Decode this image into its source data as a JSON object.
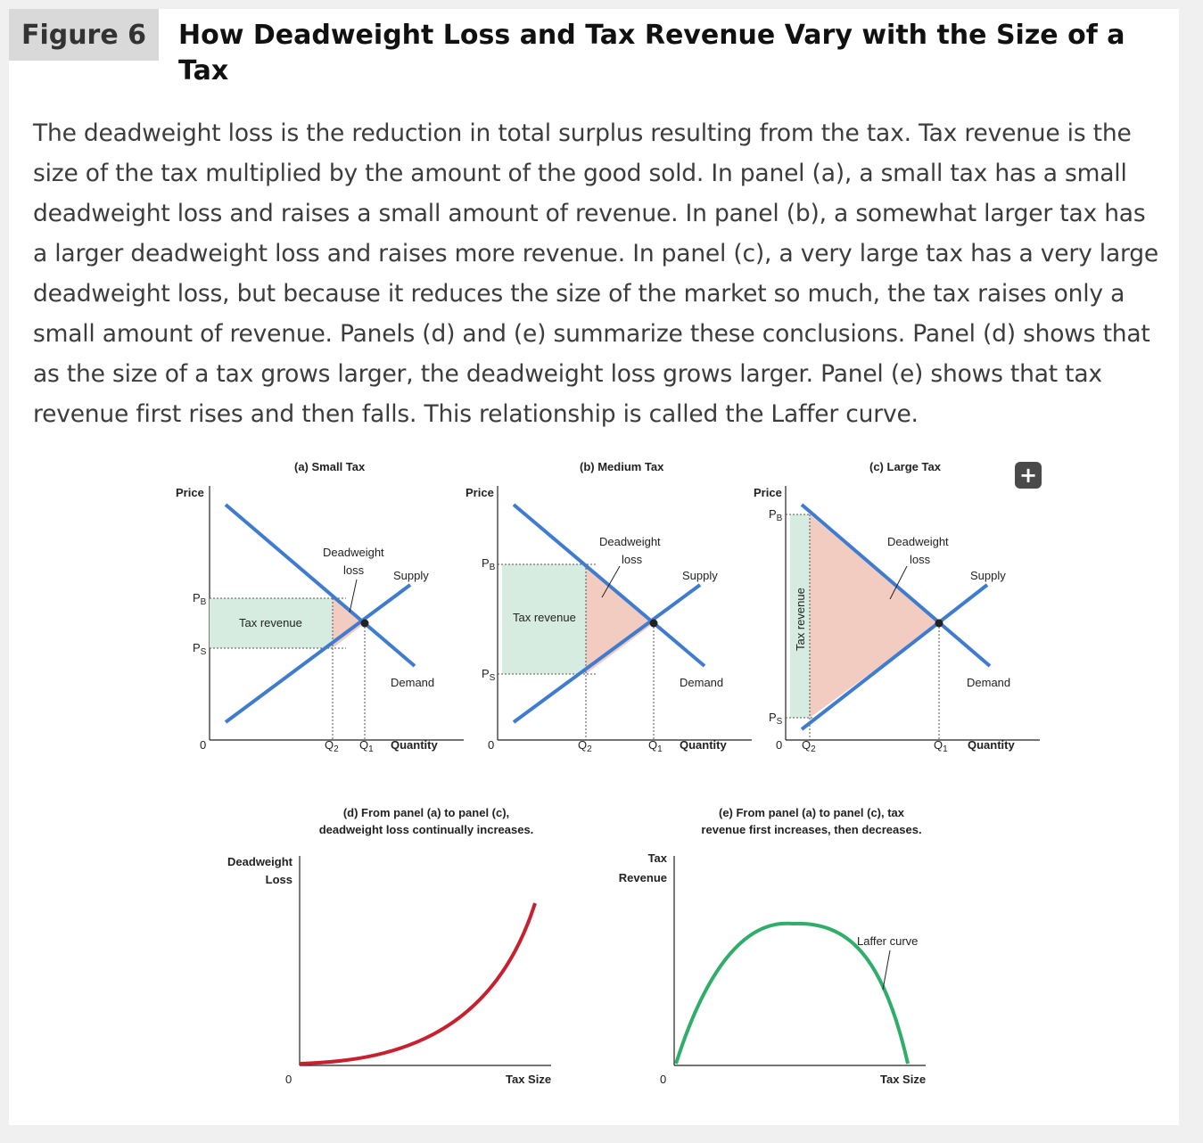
{
  "figure": {
    "label": "Figure 6",
    "title": "How Deadweight Loss and Tax Revenue Vary with the Size of a Tax",
    "caption": "The deadweight loss is the reduction in total surplus resulting from the tax. Tax revenue is the size of the tax multiplied by the amount of the good sold. In panel (a), a small tax has a small deadweight loss and raises a small amount of revenue. In panel (b), a somewhat larger tax has a larger deadweight loss and raises more revenue. In panel (c), a very large tax has a very large deadweight loss, but because it reduces the size of the market so much, the tax raises only a small amount of revenue. Panels (d) and (e) summarize these conclusions. Panel (d) shows that as the size of a tax grows larger, the deadweight loss grows larger. Panel (e) shows that tax revenue first rises and then falls. This relationship is called the Laffer curve."
  },
  "expand_button": {
    "label": "+",
    "icon": "plus-icon"
  },
  "panels": {
    "a": {
      "title": "(a) Small Tax",
      "y_axis": "Price",
      "x_axis": "Quantity",
      "origin": "0",
      "pb": "P",
      "pb_sub": "B",
      "ps": "P",
      "ps_sub": "S",
      "q1": "Q",
      "q1_sub": "1",
      "q2": "Q",
      "q2_sub": "2",
      "supply": "Supply",
      "demand": "Demand",
      "dwl_line1": "Deadweight",
      "dwl_line2": "loss",
      "revenue": "Tax revenue"
    },
    "b": {
      "title": "(b) Medium Tax",
      "y_axis": "Price",
      "x_axis": "Quantity",
      "origin": "0",
      "pb": "P",
      "pb_sub": "B",
      "ps": "P",
      "ps_sub": "S",
      "q1": "Q",
      "q1_sub": "1",
      "q2": "Q",
      "q2_sub": "2",
      "supply": "Supply",
      "demand": "Demand",
      "dwl_line1": "Deadweight",
      "dwl_line2": "loss",
      "revenue": "Tax revenue"
    },
    "c": {
      "title": "(c) Large Tax",
      "y_axis": "Price",
      "x_axis": "Quantity",
      "origin": "0",
      "pb": "P",
      "pb_sub": "B",
      "ps": "P",
      "ps_sub": "S",
      "q1": "Q",
      "q1_sub": "1",
      "q2": "Q",
      "q2_sub": "2",
      "supply": "Supply",
      "demand": "Demand",
      "dwl_line1": "Deadweight",
      "dwl_line2": "loss",
      "revenue": "Tax revenue"
    },
    "d": {
      "title_line1": "(d) From panel (a) to panel (c),",
      "title_line2": "deadweight loss continually increases.",
      "y_axis_line1": "Deadweight",
      "y_axis_line2": "Loss",
      "x_axis": "Tax Size",
      "origin": "0"
    },
    "e": {
      "title_line1": "(e) From panel (a) to panel (c), tax",
      "title_line2": "revenue first increases, then decreases.",
      "y_axis_line1": "Tax",
      "y_axis_line2": "Revenue",
      "x_axis": "Tax Size",
      "origin": "0",
      "curve_label": "Laffer curve"
    }
  },
  "colors": {
    "line_blue": "#3f7ccf",
    "dwl_fill": "#f2ccc0",
    "revenue_fill": "#d6ece0",
    "dwl_curve": "#c8202f",
    "laffer_curve": "#2fae6a",
    "card": "#ffffff",
    "page": "#f0f0f0"
  }
}
